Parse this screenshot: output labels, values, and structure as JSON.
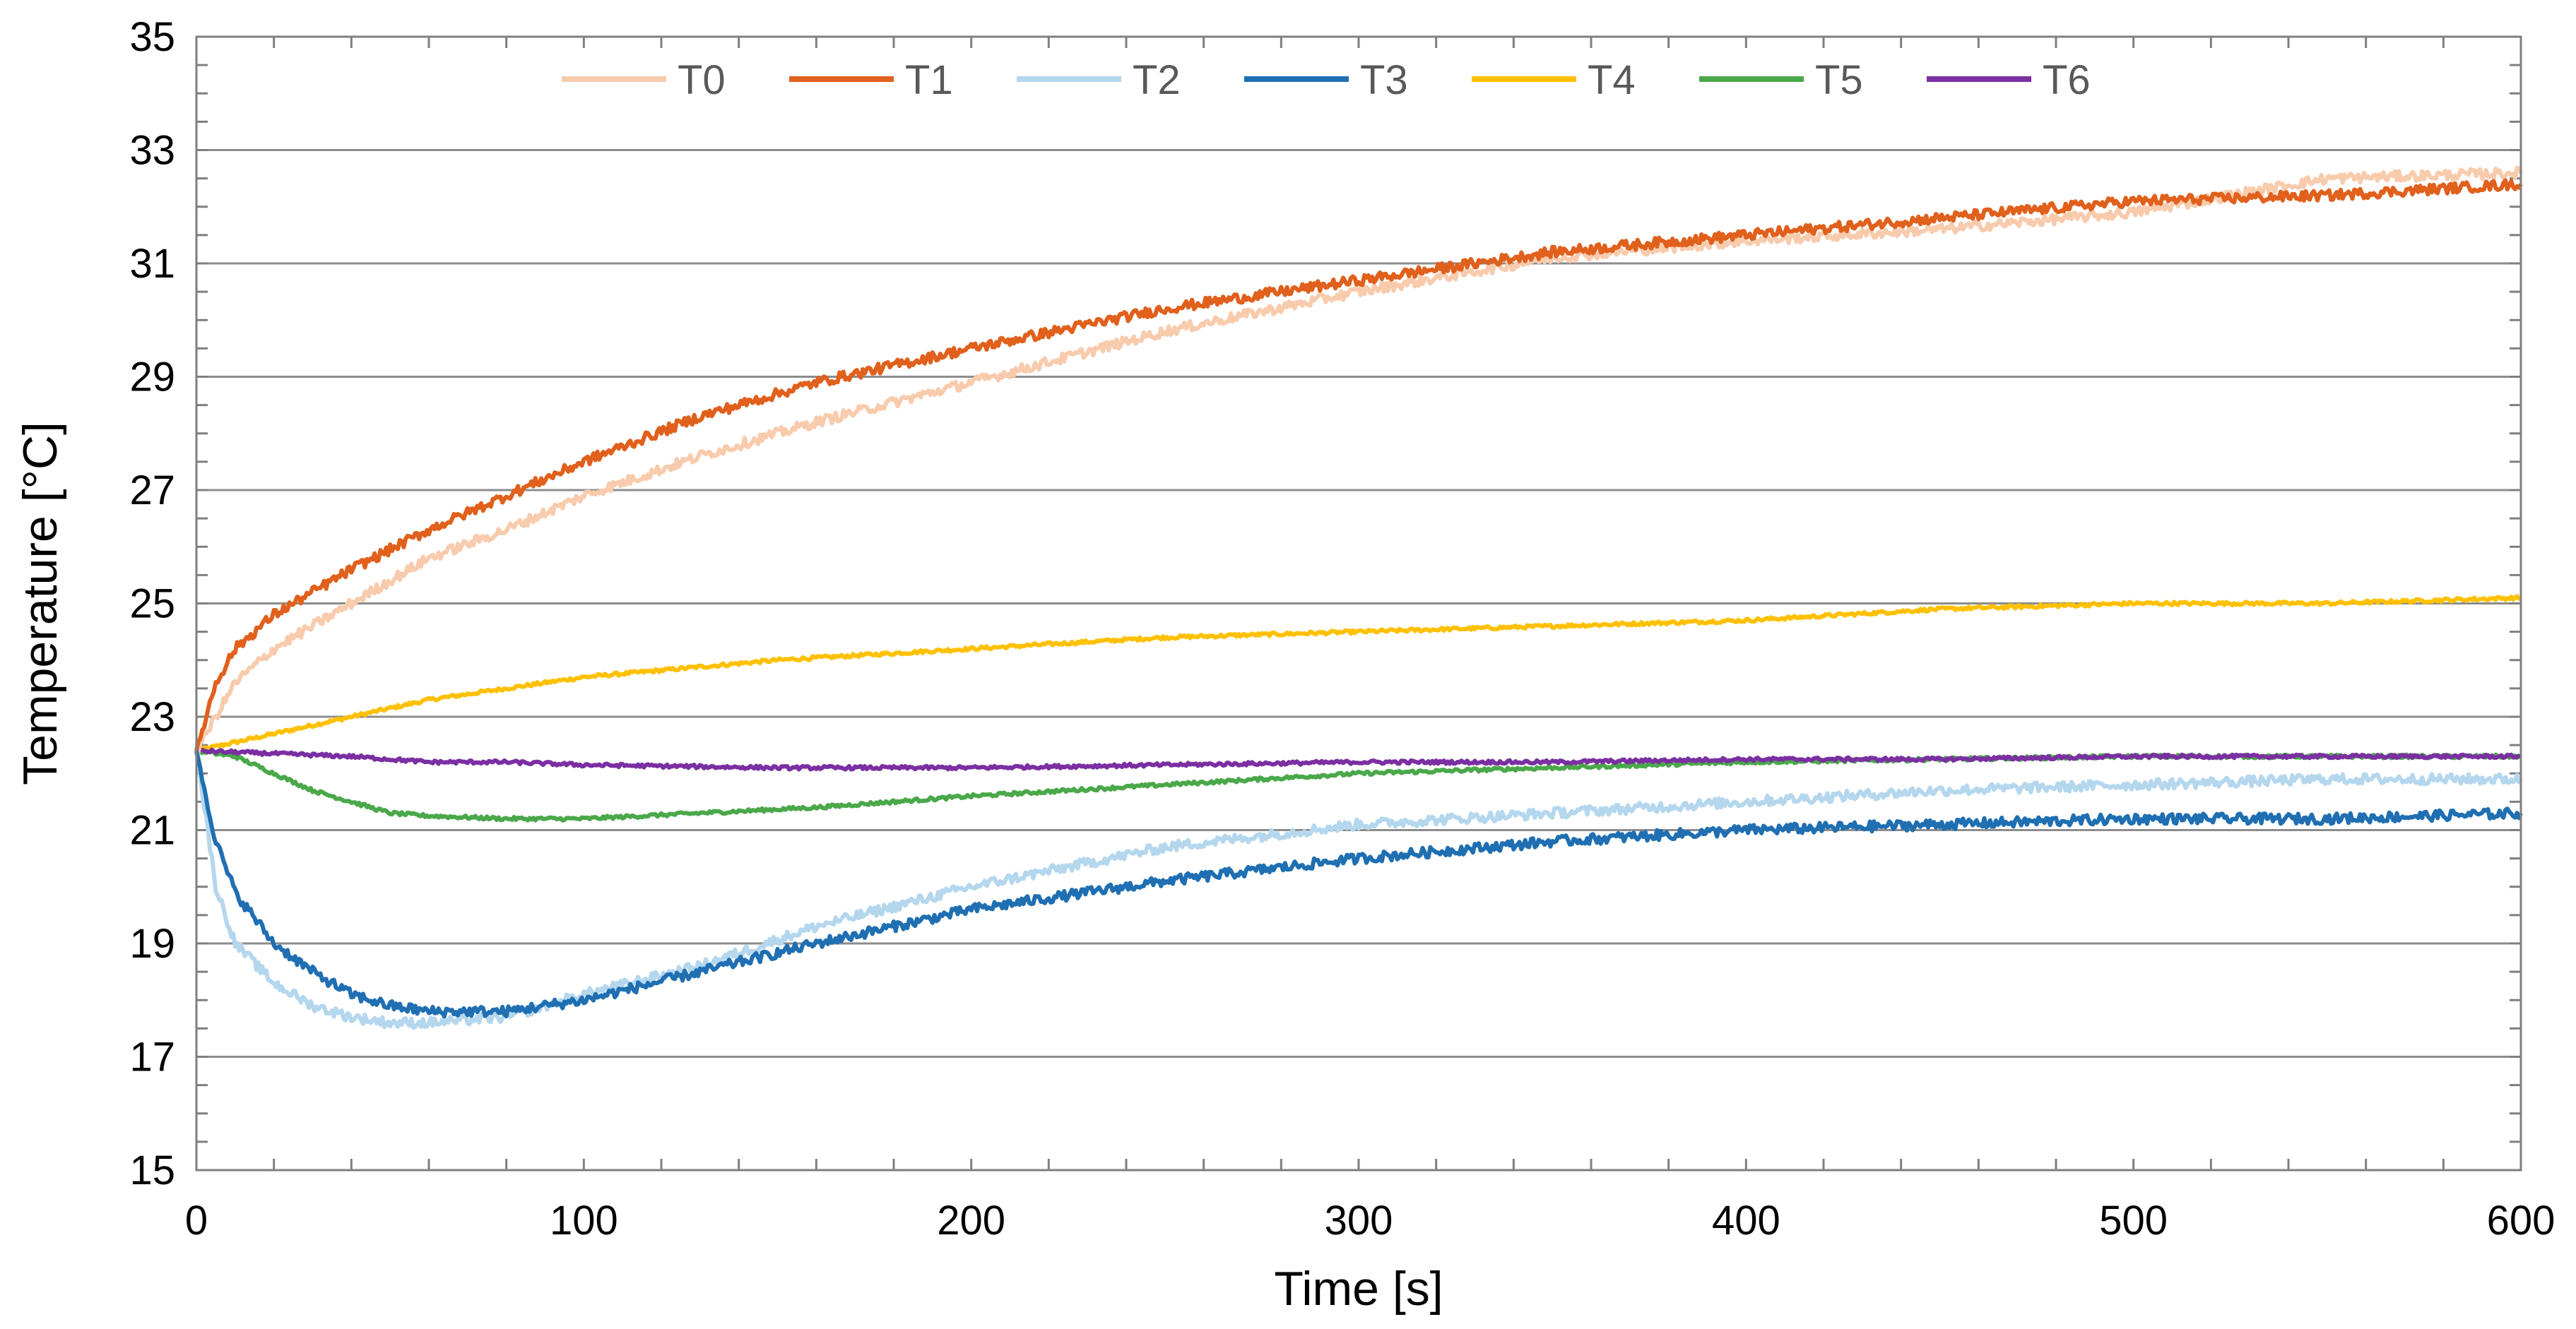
{
  "chart_data": {
    "type": "line",
    "title": "",
    "xlabel": "Time [s]",
    "ylabel": "Temperature [°C]",
    "xlim": [
      0,
      600
    ],
    "ylim": [
      15,
      35
    ],
    "xticks": [
      0,
      100,
      200,
      300,
      400,
      500,
      600
    ],
    "yticks": [
      15,
      17,
      19,
      21,
      23,
      25,
      27,
      29,
      31,
      33,
      35
    ],
    "grid": "horizontal",
    "legend": "top-center",
    "series": [
      {
        "name": "T0",
        "color": "#F8CBAD",
        "x": [
          0,
          10,
          20,
          30,
          40,
          60,
          80,
          100,
          130,
          160,
          200,
          250,
          300,
          350,
          400,
          450,
          500,
          550,
          600
        ],
        "y": [
          22.4,
          23.6,
          24.2,
          24.6,
          25.0,
          25.8,
          26.3,
          26.9,
          27.6,
          28.2,
          28.9,
          29.8,
          30.5,
          31.1,
          31.4,
          31.6,
          31.9,
          32.5,
          32.6
        ]
      },
      {
        "name": "T1",
        "color": "#E0601C",
        "x": [
          0,
          5,
          10,
          20,
          30,
          40,
          60,
          80,
          100,
          130,
          160,
          200,
          250,
          300,
          350,
          400,
          450,
          500,
          550,
          600
        ],
        "y": [
          22.4,
          23.6,
          24.2,
          24.8,
          25.2,
          25.6,
          26.3,
          26.9,
          27.5,
          28.3,
          28.9,
          29.5,
          30.2,
          30.7,
          31.2,
          31.5,
          31.8,
          32.1,
          32.2,
          32.4
        ]
      },
      {
        "name": "T2",
        "color": "#B4D7EE",
        "x": [
          0,
          5,
          10,
          20,
          30,
          40,
          50,
          60,
          80,
          100,
          130,
          160,
          200,
          250,
          300,
          350,
          400,
          450,
          500,
          550,
          600
        ],
        "y": [
          22.4,
          20.0,
          19.0,
          18.3,
          17.9,
          17.7,
          17.6,
          17.6,
          17.7,
          18.1,
          18.6,
          19.3,
          20.0,
          20.7,
          21.1,
          21.3,
          21.5,
          21.7,
          21.8,
          21.9,
          21.9
        ]
      },
      {
        "name": "T3",
        "color": "#1F6FB2",
        "x": [
          0,
          5,
          10,
          20,
          30,
          40,
          50,
          60,
          80,
          100,
          130,
          160,
          200,
          250,
          300,
          350,
          400,
          450,
          500,
          550,
          600
        ],
        "y": [
          22.4,
          20.8,
          19.9,
          19.0,
          18.5,
          18.1,
          17.9,
          17.8,
          17.8,
          18.0,
          18.5,
          19.0,
          19.6,
          20.1,
          20.5,
          20.8,
          21.0,
          21.1,
          21.2,
          21.2,
          21.3
        ]
      },
      {
        "name": "T4",
        "color": "#FFC000",
        "x": [
          0,
          20,
          40,
          60,
          80,
          100,
          150,
          200,
          250,
          300,
          350,
          400,
          450,
          500,
          550,
          600
        ],
        "y": [
          22.4,
          22.7,
          23.0,
          23.3,
          23.5,
          23.7,
          24.0,
          24.2,
          24.4,
          24.5,
          24.6,
          24.7,
          24.9,
          25.0,
          25.0,
          25.1
        ]
      },
      {
        "name": "T5",
        "color": "#4AA84A",
        "x": [
          0,
          10,
          20,
          30,
          40,
          50,
          60,
          80,
          100,
          130,
          160,
          200,
          250,
          300,
          350,
          400,
          450,
          500,
          550,
          600
        ],
        "y": [
          22.4,
          22.3,
          22.0,
          21.7,
          21.5,
          21.3,
          21.25,
          21.2,
          21.2,
          21.3,
          21.4,
          21.6,
          21.8,
          22.0,
          22.1,
          22.2,
          22.25,
          22.3,
          22.3,
          22.3
        ]
      },
      {
        "name": "T6",
        "color": "#7B2FA2",
        "x": [
          0,
          20,
          40,
          60,
          80,
          100,
          150,
          200,
          250,
          300,
          350,
          400,
          450,
          500,
          550,
          600
        ],
        "y": [
          22.4,
          22.35,
          22.3,
          22.2,
          22.2,
          22.15,
          22.1,
          22.1,
          22.15,
          22.2,
          22.2,
          22.25,
          22.25,
          22.3,
          22.3,
          22.3
        ]
      }
    ]
  }
}
